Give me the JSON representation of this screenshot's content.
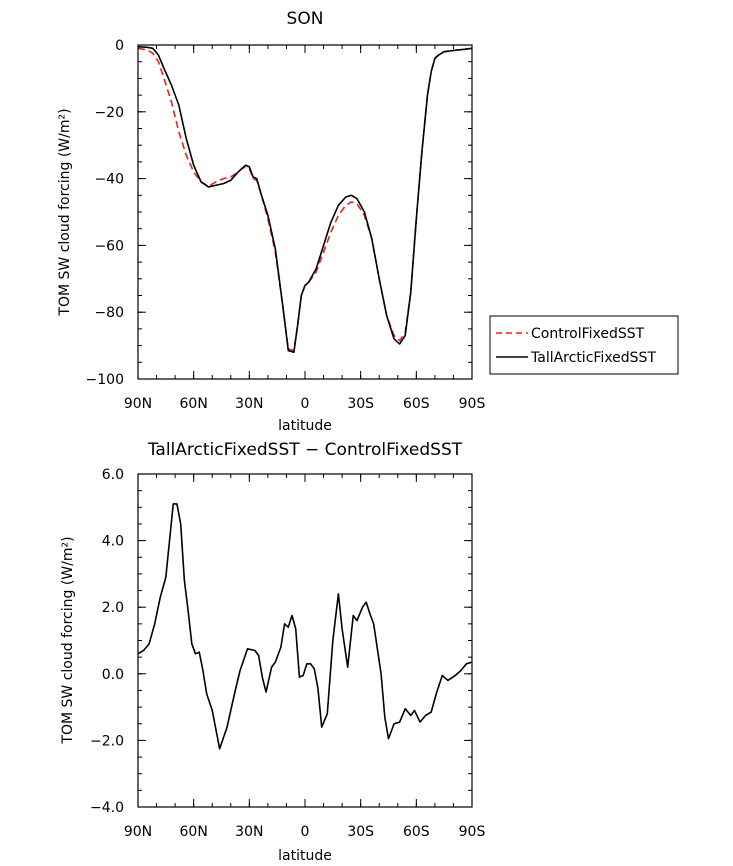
{
  "chart_data": [
    {
      "type": "line",
      "title": "SON",
      "xlabel": "latitude",
      "ylabel": "TOM SW cloud forcing (W/m²)",
      "xlim": [
        90,
        -90
      ],
      "ylim": [
        -100,
        0
      ],
      "x_ticks": [
        90,
        60,
        30,
        0,
        -30,
        -60,
        -90
      ],
      "x_tick_labels": [
        "90N",
        "60N",
        "30N",
        "0",
        "30S",
        "60S",
        "90S"
      ],
      "y_ticks": [
        0,
        -20,
        -40,
        -60,
        -80,
        -100
      ],
      "y_tick_labels": [
        "0",
        "−20",
        "−40",
        "−60",
        "−80",
        "−100"
      ],
      "legend": {
        "position": "right",
        "entries": [
          "ControlFixedSST",
          "TallArcticFixedSST"
        ]
      },
      "series": [
        {
          "name": "ControlFixedSST",
          "color": "#e8241c",
          "dash": "dashed",
          "x": [
            90,
            85,
            82,
            79,
            76,
            72,
            68,
            64,
            60,
            56,
            52,
            48,
            44,
            40,
            36,
            34,
            32,
            30,
            28,
            26,
            24,
            20,
            16,
            12,
            9,
            6,
            4,
            2,
            0,
            -2,
            -6,
            -10,
            -14,
            -18,
            -22,
            -25,
            -28,
            -32,
            -36,
            -40,
            -44,
            -48,
            -51,
            -54,
            -57,
            -60,
            -63,
            -66,
            -68,
            -70,
            -72,
            -75,
            -78,
            -82,
            -86,
            -90
          ],
          "values": [
            -1,
            -1.5,
            -2.5,
            -5,
            -10,
            -17,
            -26,
            -33,
            -38,
            -41,
            -42.3,
            -41,
            -40,
            -39.5,
            -38,
            -37,
            -36.5,
            -37,
            -40,
            -40.5,
            -44,
            -52,
            -62,
            -78,
            -91,
            -91.5,
            -84,
            -75,
            -72,
            -71,
            -68,
            -62,
            -56,
            -51,
            -48,
            -47,
            -47.5,
            -51,
            -58,
            -70,
            -81,
            -87,
            -88.5,
            -86,
            -74,
            -52,
            -32,
            -15,
            -8,
            -4,
            -3,
            -2,
            -1.8,
            -1.5,
            -1.3,
            -1
          ]
        },
        {
          "name": "TallArcticFixedSST",
          "color": "#000000",
          "dash": "solid",
          "x": [
            90,
            85,
            82,
            79,
            76,
            72,
            68,
            64,
            60,
            56,
            52,
            48,
            44,
            40,
            36,
            34,
            32,
            30,
            28,
            26,
            24,
            20,
            16,
            12,
            9,
            6,
            4,
            2,
            0,
            -2,
            -6,
            -10,
            -14,
            -18,
            -22,
            -25,
            -28,
            -32,
            -36,
            -40,
            -44,
            -48,
            -51,
            -54,
            -57,
            -60,
            -63,
            -66,
            -68,
            -70,
            -72,
            -75,
            -78,
            -82,
            -86,
            -90
          ],
          "values": [
            -0.5,
            -0.7,
            -1,
            -3,
            -7,
            -12,
            -18,
            -28,
            -36,
            -41,
            -42.5,
            -42,
            -41.5,
            -40.5,
            -38,
            -37,
            -36,
            -36.5,
            -39.5,
            -40,
            -44,
            -51,
            -61,
            -78,
            -91.5,
            -92,
            -84,
            -75,
            -72,
            -71,
            -67,
            -60,
            -53,
            -48,
            -45.5,
            -45,
            -46,
            -50,
            -58,
            -70,
            -81,
            -88,
            -89.5,
            -87,
            -74,
            -52,
            -32,
            -15,
            -8,
            -4,
            -3,
            -2,
            -1.8,
            -1.5,
            -1.3,
            -1
          ]
        }
      ]
    },
    {
      "type": "line",
      "title": "TallArcticFixedSST − ControlFixedSST",
      "xlabel": "latitude",
      "ylabel": "TOM SW cloud forcing (W/m²)",
      "xlim": [
        90,
        -90
      ],
      "ylim": [
        -4,
        6
      ],
      "x_ticks": [
        90,
        60,
        30,
        0,
        -30,
        -60,
        -90
      ],
      "x_tick_labels": [
        "90N",
        "60N",
        "30N",
        "0",
        "30S",
        "60S",
        "90S"
      ],
      "y_ticks": [
        6,
        4,
        2,
        0,
        -2,
        -4
      ],
      "y_tick_labels": [
        "6.0",
        "4.0",
        "2.0",
        "0.0",
        "−2.0",
        "−4.0"
      ],
      "series": [
        {
          "name": "TallArcticFixedSST − ControlFixedSST",
          "color": "#000000",
          "dash": "solid",
          "x": [
            90,
            87,
            84,
            81,
            78,
            75,
            73,
            71,
            69,
            67,
            65,
            63,
            61,
            59,
            57,
            55,
            53,
            50,
            46,
            42,
            38,
            35,
            31,
            27,
            25,
            23,
            21,
            18,
            16,
            13,
            11,
            9,
            7,
            5,
            3,
            1,
            -1,
            -3,
            -5,
            -7,
            -9,
            -12,
            -15,
            -18,
            -20,
            -23,
            -26,
            -28,
            -31,
            -33,
            -35,
            -37,
            -41,
            -43,
            -45,
            -48,
            -51,
            -54,
            -57,
            -59,
            -62,
            -65,
            -68,
            -71,
            -74,
            -77,
            -81,
            -84,
            -87,
            -90
          ],
          "values": [
            0.6,
            0.7,
            0.9,
            1.5,
            2.3,
            2.9,
            4.0,
            5.1,
            5.1,
            4.5,
            2.8,
            1.9,
            0.9,
            0.6,
            0.65,
            0.1,
            -0.6,
            -1.1,
            -2.25,
            -1.6,
            -0.6,
            0.1,
            0.75,
            0.7,
            0.55,
            -0.1,
            -0.55,
            0.2,
            0.35,
            0.8,
            1.5,
            1.4,
            1.75,
            1.35,
            -0.1,
            -0.05,
            0.3,
            0.3,
            0.15,
            -0.45,
            -1.6,
            -1.2,
            1.0,
            2.4,
            1.35,
            0.2,
            1.75,
            1.6,
            2.0,
            2.15,
            1.8,
            1.5,
            0.0,
            -1.3,
            -1.95,
            -1.5,
            -1.45,
            -1.05,
            -1.25,
            -1.1,
            -1.45,
            -1.25,
            -1.15,
            -0.55,
            -0.05,
            -0.2,
            -0.05,
            0.1,
            0.3,
            0.35
          ]
        }
      ]
    }
  ]
}
